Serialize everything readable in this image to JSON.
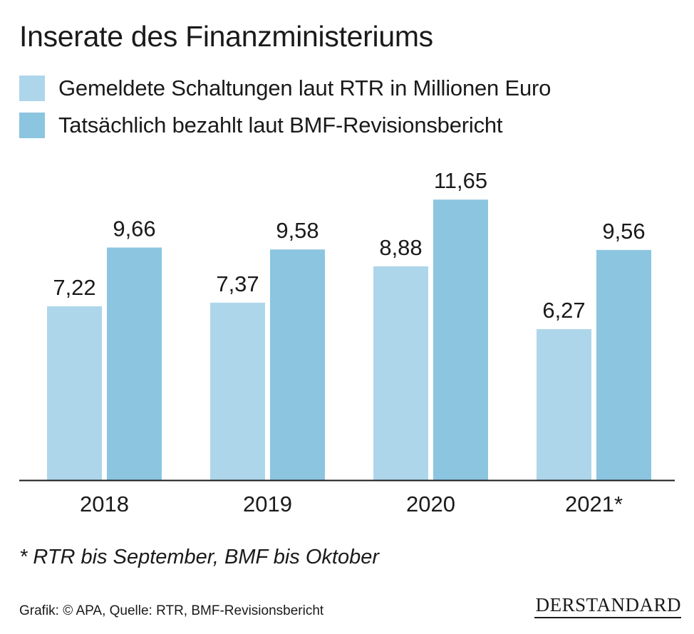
{
  "colors": {
    "series_light": "#aed6ea",
    "series_dark": "#8cc5e0",
    "axis": "#1a1a1a",
    "text": "#1a1a1a"
  },
  "chart_data": {
    "type": "bar",
    "title": "Inserate des Finanzministeriums",
    "categories": [
      "2018",
      "2019",
      "2020",
      "2021*"
    ],
    "series": [
      {
        "name": "Gemeldete Schaltungen laut RTR in Millionen Euro",
        "values": [
          7.22,
          7.37,
          8.88,
          6.27
        ],
        "labels": [
          "7,22",
          "7,37",
          "8,88",
          "6,27"
        ]
      },
      {
        "name": "Tatsächlich bezahlt laut BMF-Revisionsbericht",
        "values": [
          9.66,
          9.58,
          11.65,
          9.56
        ],
        "labels": [
          "9,66",
          "9,58",
          "11,65",
          "9,56"
        ]
      }
    ],
    "ylim": [
      0,
      12
    ],
    "xlabel": "",
    "ylabel": "",
    "grid": false,
    "legend_position": "top-left"
  },
  "footnote": "* RTR bis September, BMF bis Oktober",
  "source": "Grafik: © APA, Quelle: RTR, BMF-Revisionsbericht",
  "logo": "DERSTANDARD"
}
